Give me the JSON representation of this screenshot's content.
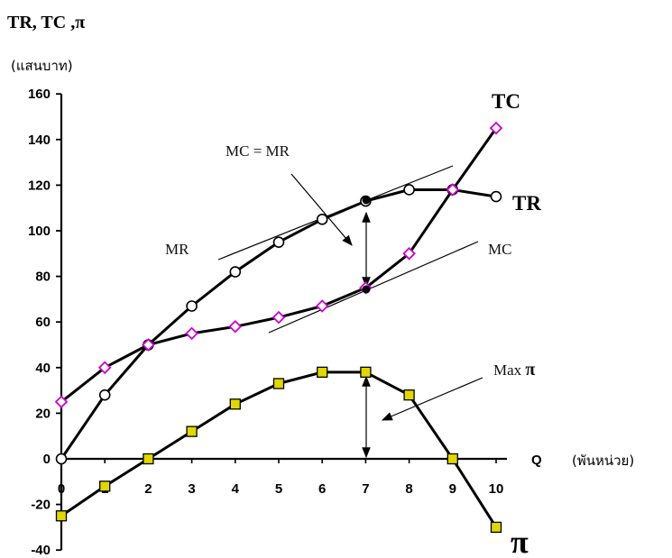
{
  "chart_data": {
    "type": "line",
    "title": "TR, TC ,π",
    "unit_label": "(แสนบาท)",
    "x_axis_label": "Q",
    "x_unit_label": "(พันหน่วย)",
    "ylim": [
      -40,
      160
    ],
    "xlim": [
      0,
      10
    ],
    "x_ticks": [
      "0",
      "1",
      "2",
      "3",
      "4",
      "5",
      "6",
      "7",
      "8",
      "9",
      "10"
    ],
    "y_ticks": [
      "160",
      "140",
      "120",
      "100",
      "80",
      "60",
      "40",
      "20",
      "0",
      "-20",
      "-40"
    ],
    "grid": false,
    "series": [
      {
        "name": "TR",
        "color": "#000000",
        "marker": "circle",
        "x": [
          0,
          1,
          2,
          3,
          4,
          5,
          6,
          7,
          8,
          9,
          10
        ],
        "values": [
          0,
          28,
          50,
          67,
          82,
          95,
          105,
          113,
          118,
          118,
          115
        ]
      },
      {
        "name": "TC",
        "color": "#cc00cc",
        "marker": "diamond",
        "x": [
          0,
          1,
          2,
          3,
          4,
          5,
          6,
          7,
          8,
          9,
          10
        ],
        "values": [
          25,
          40,
          50,
          55,
          58,
          62,
          67,
          75,
          90,
          118,
          145
        ]
      },
      {
        "name": "π",
        "color": "#e0d800",
        "marker": "square",
        "x": [
          0,
          1,
          2,
          3,
          4,
          5,
          6,
          7,
          8,
          9,
          10
        ],
        "values": [
          -25,
          -12,
          0,
          12,
          24,
          33,
          38,
          38,
          28,
          0,
          -30
        ]
      }
    ],
    "annotations": {
      "mc_eq_mr": "MC = MR",
      "mr": "MR",
      "mc": "MC",
      "max_pi": "Max",
      "max_pi_symbol": "π"
    }
  }
}
